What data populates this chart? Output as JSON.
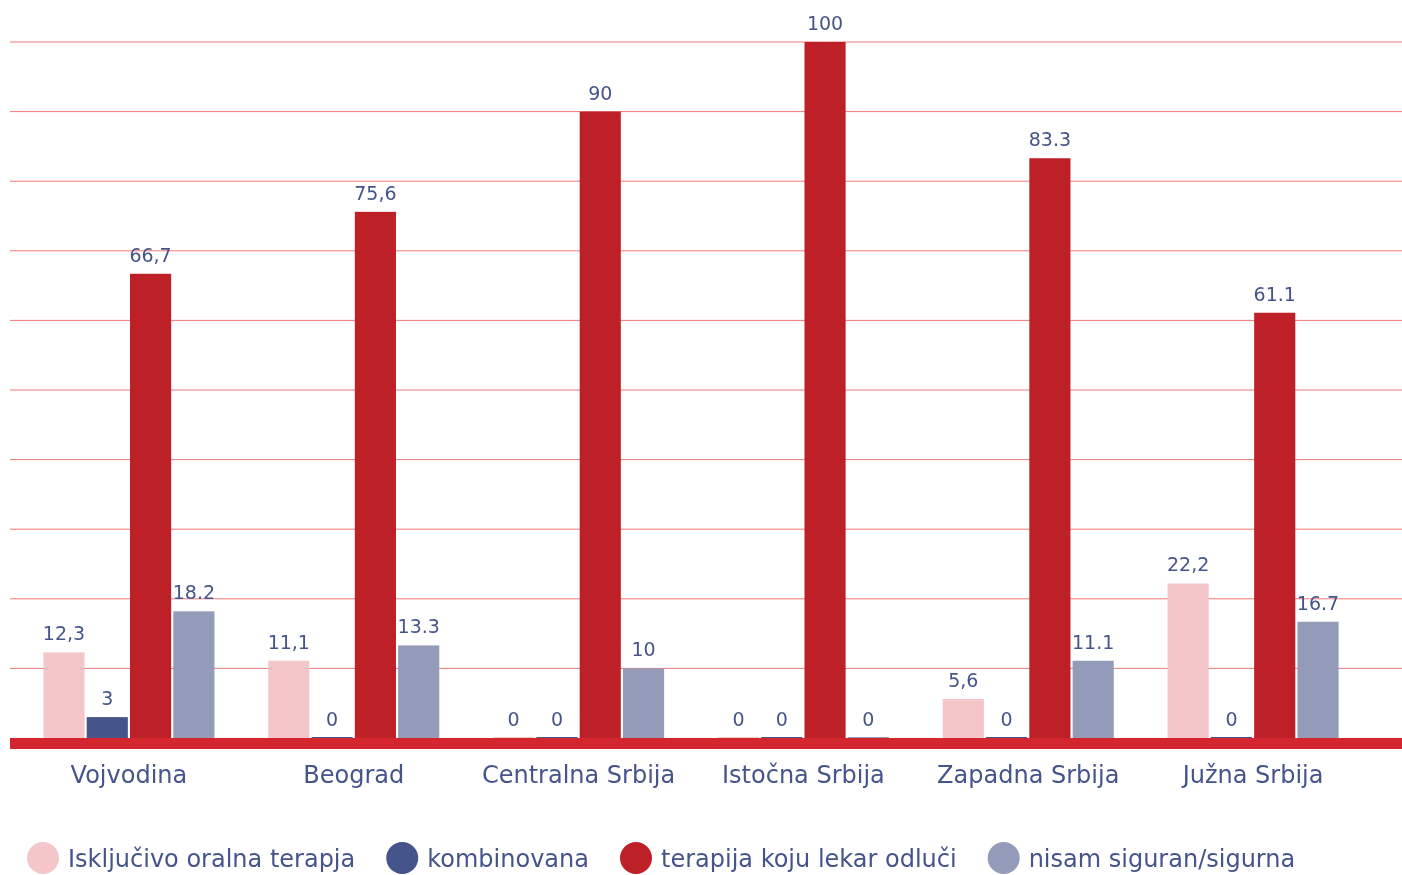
{
  "chart_data": {
    "type": "bar",
    "categories": [
      "Vojvodina",
      "Beograd",
      "Centralna Srbija",
      "Istočna Srbija",
      "Zapadna Srbija",
      "Južna Srbija"
    ],
    "series": [
      {
        "name": "Isključivo oralna terapja",
        "color": "#f4c6c9",
        "values": [
          12.3,
          11.1,
          0,
          0,
          5.6,
          22.2
        ],
        "value_labels": [
          "12,3",
          "11,1",
          "0",
          "0",
          "5,6",
          "22,2"
        ]
      },
      {
        "name": "kombinovana",
        "color": "#45548a",
        "values": [
          3,
          0,
          0,
          0,
          0,
          0
        ],
        "value_labels": [
          "3",
          "0",
          "0",
          "0",
          "0",
          "0"
        ]
      },
      {
        "name": "terapija koju lekar odluči",
        "color": "#bd2127",
        "values": [
          66.7,
          75.6,
          90,
          100,
          83.3,
          61.1
        ],
        "value_labels": [
          "66,7",
          "75,6",
          "90",
          "100",
          "83.3",
          "61.1"
        ]
      },
      {
        "name": "nisam siguran/sigurna",
        "color": "#939bb8",
        "values": [
          18.2,
          13.3,
          10,
          0,
          11.1,
          16.7
        ],
        "value_labels": [
          "18.2",
          "13.3",
          "10",
          "0",
          "11.1",
          "16.7"
        ]
      }
    ],
    "ylim": [
      0,
      100
    ],
    "yticks": [
      {
        "value": 10,
        "label": null
      },
      {
        "value": 20,
        "label": null
      },
      {
        "value": 30,
        "label": null
      },
      {
        "value": 40,
        "label": null
      },
      {
        "value": 50,
        "label": null
      },
      {
        "value": 60,
        "label": null
      },
      {
        "value": 70,
        "label": null
      },
      {
        "value": 80,
        "label": null
      },
      {
        "value": 90,
        "label": null
      },
      {
        "value": 100,
        "label": null
      }
    ],
    "grid": "y",
    "legend": "bottom",
    "tick_labels": "x"
  }
}
